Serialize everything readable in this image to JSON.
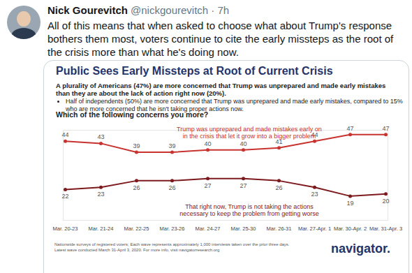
{
  "tweet": {
    "name": "Nick Gourevitch",
    "handle_line": "@nickgourevitch · 7h",
    "text": "All of this means that when asked to choose what about Trump's response bothers them most, voters continue to cite the early missteps as the root of the crisis more than what he's doing now."
  },
  "chart_data": {
    "type": "line",
    "title": "Public Sees Early Missteps at Root of Current Crisis",
    "subtitle": "A plurality of Americans (47%) are more concerned that Trump was unprepared and made early mistakes than they are about the lack of action right now (20%).",
    "bullet": "Half of independents (50%) are more concerned that Trump was unprepared and made early mistakes, compared to 15% who are more concerned that he isn't taking proper actions now.",
    "question": "Which of the following concerns you more?",
    "caption": "Nationwide surveys of registered voters; Each wave represents approximately 1,000 interviews taken over the prior three days.\nLatest wave conducted March 31-April 3, 2020. For more info, visit navigatorresearch.org",
    "logo": "navigator.",
    "categories": [
      "Mar. 20-23",
      "Mar. 21-24",
      "Mar. 22-25",
      "Mar. 23-26",
      "Mar. 24-27",
      "Mar. 25-30",
      "Mar. 26-31",
      "Mar. 27-Apr. 1",
      "Mar. 30-Apr. 2",
      "Mar. 31-Apr. 3"
    ],
    "series": [
      {
        "name": "Trump was unprepared and made mistakes early on\nin the crisis that let it grow into a bigger problem",
        "color": "#c8332f",
        "values": [
          44,
          43,
          39,
          39,
          40,
          40,
          41,
          44,
          47,
          47
        ]
      },
      {
        "name": "That right now, Trump is not taking the actions\nnecessary to keep the problem from getting worse",
        "color": "#7d1a1e",
        "values": [
          22,
          23,
          26,
          26,
          27,
          27,
          26,
          23,
          19,
          20
        ]
      }
    ],
    "ylim": [
      8,
      49
    ],
    "data_labels": true,
    "tick_labels": "x",
    "marker": "circle"
  }
}
